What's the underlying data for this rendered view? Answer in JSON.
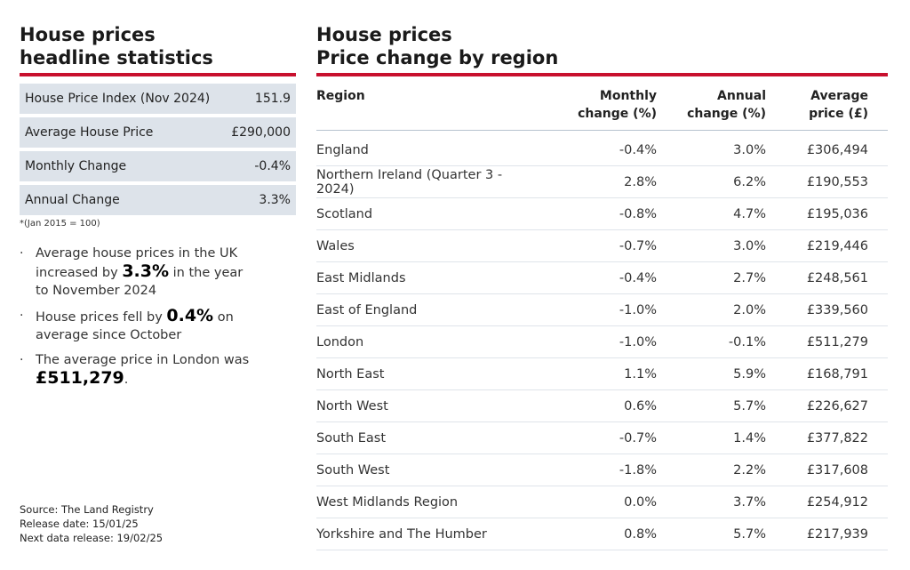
{
  "left": {
    "title_line1": "House prices",
    "title_line2": "headline statistics",
    "stats": [
      {
        "label": "House Price Index (Nov 2024)",
        "value": "151.9"
      },
      {
        "label": "Average House Price",
        "value": "£290,000"
      },
      {
        "label": "Monthly Change",
        "value": "-0.4%"
      },
      {
        "label": "Annual Change",
        "value": "3.3%"
      }
    ],
    "footnote": "*(Jan 2015 = 100)",
    "bullets": [
      {
        "pre": "Average house prices in the UK increased by ",
        "bold": "3.3%",
        "post": " in the year to November 2024"
      },
      {
        "pre": "House prices fell by ",
        "bold": "0.4%",
        "post": " on average since October"
      },
      {
        "pre": "The average price in London was ",
        "bold": "£511,279",
        "post": "."
      }
    ],
    "source": {
      "line1": "Source: The Land Registry",
      "line2": "Release date: 15/01/25",
      "line3": "Next data release: 19/02/25"
    }
  },
  "right": {
    "title_line1": "House prices",
    "title_line2": "Price change by region",
    "headers": {
      "region": "Region",
      "monthly": [
        "Monthly",
        "change (%)"
      ],
      "annual": [
        "Annual",
        "change (%)"
      ],
      "price": [
        "Average",
        "price (£)"
      ]
    },
    "rows": [
      {
        "region": "England",
        "monthly": "-0.4%",
        "annual": "3.0%",
        "price": "£306,494"
      },
      {
        "region": "Northern Ireland (Quarter 3 - 2024)",
        "monthly": "2.8%",
        "annual": "6.2%",
        "price": "£190,553"
      },
      {
        "region": "Scotland",
        "monthly": "-0.8%",
        "annual": "4.7%",
        "price": "£195,036"
      },
      {
        "region": "Wales",
        "monthly": "-0.7%",
        "annual": "3.0%",
        "price": "£219,446"
      },
      {
        "region": "East Midlands",
        "monthly": "-0.4%",
        "annual": "2.7%",
        "price": "£248,561"
      },
      {
        "region": "East of England",
        "monthly": "-1.0%",
        "annual": "2.0%",
        "price": "£339,560"
      },
      {
        "region": "London",
        "monthly": "-1.0%",
        "annual": "-0.1%",
        "price": "£511,279"
      },
      {
        "region": "North East",
        "monthly": "1.1%",
        "annual": "5.9%",
        "price": "£168,791"
      },
      {
        "region": "North West",
        "monthly": "0.6%",
        "annual": "5.7%",
        "price": "£226,627"
      },
      {
        "region": "South East",
        "monthly": "-0.7%",
        "annual": "1.4%",
        "price": "£377,822"
      },
      {
        "region": "South West",
        "monthly": "-1.8%",
        "annual": "2.2%",
        "price": "£317,608"
      },
      {
        "region": "West Midlands Region",
        "monthly": "0.0%",
        "annual": "3.7%",
        "price": "£254,912"
      },
      {
        "region": "Yorkshire and The Humber",
        "monthly": "0.8%",
        "annual": "5.7%",
        "price": "£217,939"
      }
    ]
  },
  "colors": {
    "accent": "#c8102e",
    "stat_bg": "#dde3ea"
  }
}
